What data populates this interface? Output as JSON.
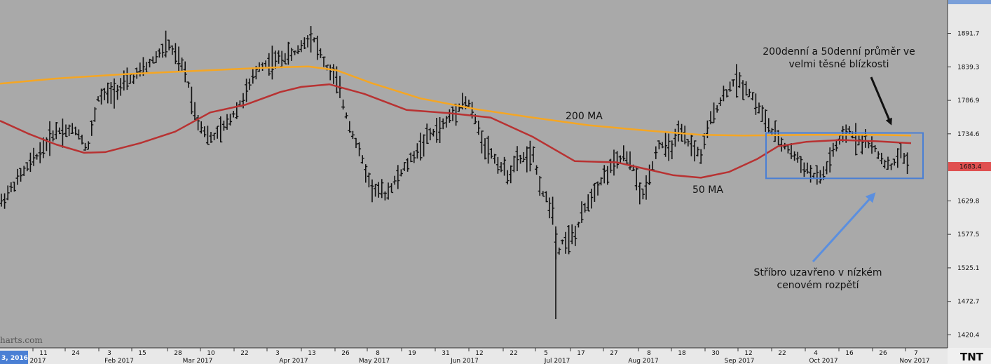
{
  "chart_data": {
    "type": "ohlc",
    "ylim": [
      1405,
      1945
    ],
    "y_ticks": [
      "1891.7",
      "1839.3",
      "1786.9",
      "1734.6",
      "1629.8",
      "1577.5",
      "1525.1",
      "1472.7",
      "1420.4"
    ],
    "last_price_label": "1683.4",
    "x_days": [
      "11",
      "24",
      "3",
      "15",
      "28",
      "10",
      "22",
      "3",
      "13",
      "26",
      "8",
      "19",
      "31",
      "12",
      "22",
      "5",
      "17",
      "27",
      "8",
      "18",
      "30",
      "12",
      "22",
      "4",
      "16",
      "26",
      "7"
    ],
    "x_months": [
      "2017",
      "Feb 2017",
      "Mar 2017",
      "Apr 2017",
      "May 2017",
      "Jun 2017",
      "Jul 2017",
      "Aug 2017",
      "Sep 2017",
      "Oct 2017",
      "Nov 2017"
    ],
    "date_badge": "3, 2016",
    "watermark": "harts.com",
    "logo": "TNT",
    "series": [
      {
        "name": "200 MA",
        "color": "#f5a623",
        "points": [
          [
            0,
            1813
          ],
          [
            80,
            1821
          ],
          [
            180,
            1828
          ],
          [
            300,
            1834
          ],
          [
            380,
            1838
          ],
          [
            440,
            1840
          ],
          [
            480,
            1834
          ],
          [
            530,
            1814
          ],
          [
            600,
            1790
          ],
          [
            680,
            1773
          ],
          [
            760,
            1760
          ],
          [
            840,
            1748
          ],
          [
            920,
            1740
          ],
          [
            1000,
            1733
          ],
          [
            1060,
            1732
          ],
          [
            1150,
            1733
          ],
          [
            1250,
            1733
          ],
          [
            1300,
            1732
          ]
        ]
      },
      {
        "name": "50 MA",
        "color": "#b83232",
        "points": [
          [
            0,
            1755
          ],
          [
            40,
            1735
          ],
          [
            80,
            1718
          ],
          [
            120,
            1705
          ],
          [
            150,
            1706
          ],
          [
            200,
            1720
          ],
          [
            250,
            1738
          ],
          [
            300,
            1768
          ],
          [
            350,
            1780
          ],
          [
            400,
            1800
          ],
          [
            430,
            1808
          ],
          [
            470,
            1812
          ],
          [
            520,
            1797
          ],
          [
            580,
            1772
          ],
          [
            640,
            1767
          ],
          [
            700,
            1760
          ],
          [
            760,
            1730
          ],
          [
            820,
            1692
          ],
          [
            880,
            1690
          ],
          [
            920,
            1680
          ],
          [
            960,
            1670
          ],
          [
            1000,
            1666
          ],
          [
            1040,
            1675
          ],
          [
            1080,
            1695
          ],
          [
            1110,
            1715
          ],
          [
            1150,
            1722
          ],
          [
            1200,
            1725
          ],
          [
            1250,
            1723
          ],
          [
            1300,
            1720
          ]
        ]
      }
    ],
    "bars_anchor": [
      [
        0,
        1625
      ],
      [
        30,
        1670
      ],
      [
        60,
        1710
      ],
      [
        80,
        1740
      ],
      [
        110,
        1740
      ],
      [
        125,
        1710
      ],
      [
        140,
        1790
      ],
      [
        160,
        1800
      ],
      [
        175,
        1810
      ],
      [
        210,
        1840
      ],
      [
        240,
        1875
      ],
      [
        265,
        1830
      ],
      [
        280,
        1760
      ],
      [
        300,
        1725
      ],
      [
        320,
        1745
      ],
      [
        345,
        1785
      ],
      [
        370,
        1840
      ],
      [
        395,
        1850
      ],
      [
        420,
        1860
      ],
      [
        445,
        1890
      ],
      [
        465,
        1840
      ],
      [
        480,
        1820
      ],
      [
        495,
        1760
      ],
      [
        515,
        1700
      ],
      [
        530,
        1650
      ],
      [
        550,
        1640
      ],
      [
        570,
        1670
      ],
      [
        590,
        1700
      ],
      [
        610,
        1730
      ],
      [
        630,
        1745
      ],
      [
        660,
        1785
      ],
      [
        670,
        1780
      ],
      [
        690,
        1720
      ],
      [
        710,
        1690
      ],
      [
        725,
        1670
      ],
      [
        740,
        1695
      ],
      [
        760,
        1700
      ],
      [
        775,
        1640
      ],
      [
        790,
        1615
      ],
      [
        795,
        1540
      ],
      [
        800,
        1565
      ],
      [
        820,
        1575
      ],
      [
        835,
        1620
      ],
      [
        850,
        1650
      ],
      [
        870,
        1680
      ],
      [
        890,
        1700
      ],
      [
        905,
        1680
      ],
      [
        915,
        1630
      ],
      [
        925,
        1665
      ],
      [
        940,
        1720
      ],
      [
        955,
        1710
      ],
      [
        970,
        1735
      ],
      [
        1000,
        1700
      ],
      [
        1015,
        1760
      ],
      [
        1030,
        1790
      ],
      [
        1050,
        1820
      ],
      [
        1070,
        1800
      ],
      [
        1090,
        1760
      ],
      [
        1100,
        1740
      ],
      [
        1115,
        1720
      ],
      [
        1130,
        1705
      ],
      [
        1150,
        1680
      ],
      [
        1165,
        1665
      ],
      [
        1175,
        1670
      ],
      [
        1190,
        1710
      ],
      [
        1210,
        1740
      ],
      [
        1225,
        1725
      ],
      [
        1240,
        1720
      ],
      [
        1255,
        1700
      ],
      [
        1270,
        1680
      ],
      [
        1285,
        1705
      ],
      [
        1295,
        1690
      ]
    ],
    "annotations": {
      "label_200ma": "200 MA",
      "label_50ma": "50 MA",
      "note_top_line1": "200denní a 50denní průměr ve",
      "note_top_line2": "velmi těsné blízkosti",
      "note_bottom_line1": "Stříbro uzavřeno v nízkém",
      "note_bottom_line2": "cenovém rozpětí"
    },
    "box": {
      "x0": 1093,
      "x1": 1317,
      "y0": 1736,
      "y1": 1665
    },
    "colors": {
      "background": "#a9a9a9",
      "axis_panel": "#e8e8e8",
      "price_badge": "#e05050",
      "box": "#4a7fd4",
      "arrow_blue": "#5b8fdf",
      "arrow_black": "#111111"
    }
  }
}
